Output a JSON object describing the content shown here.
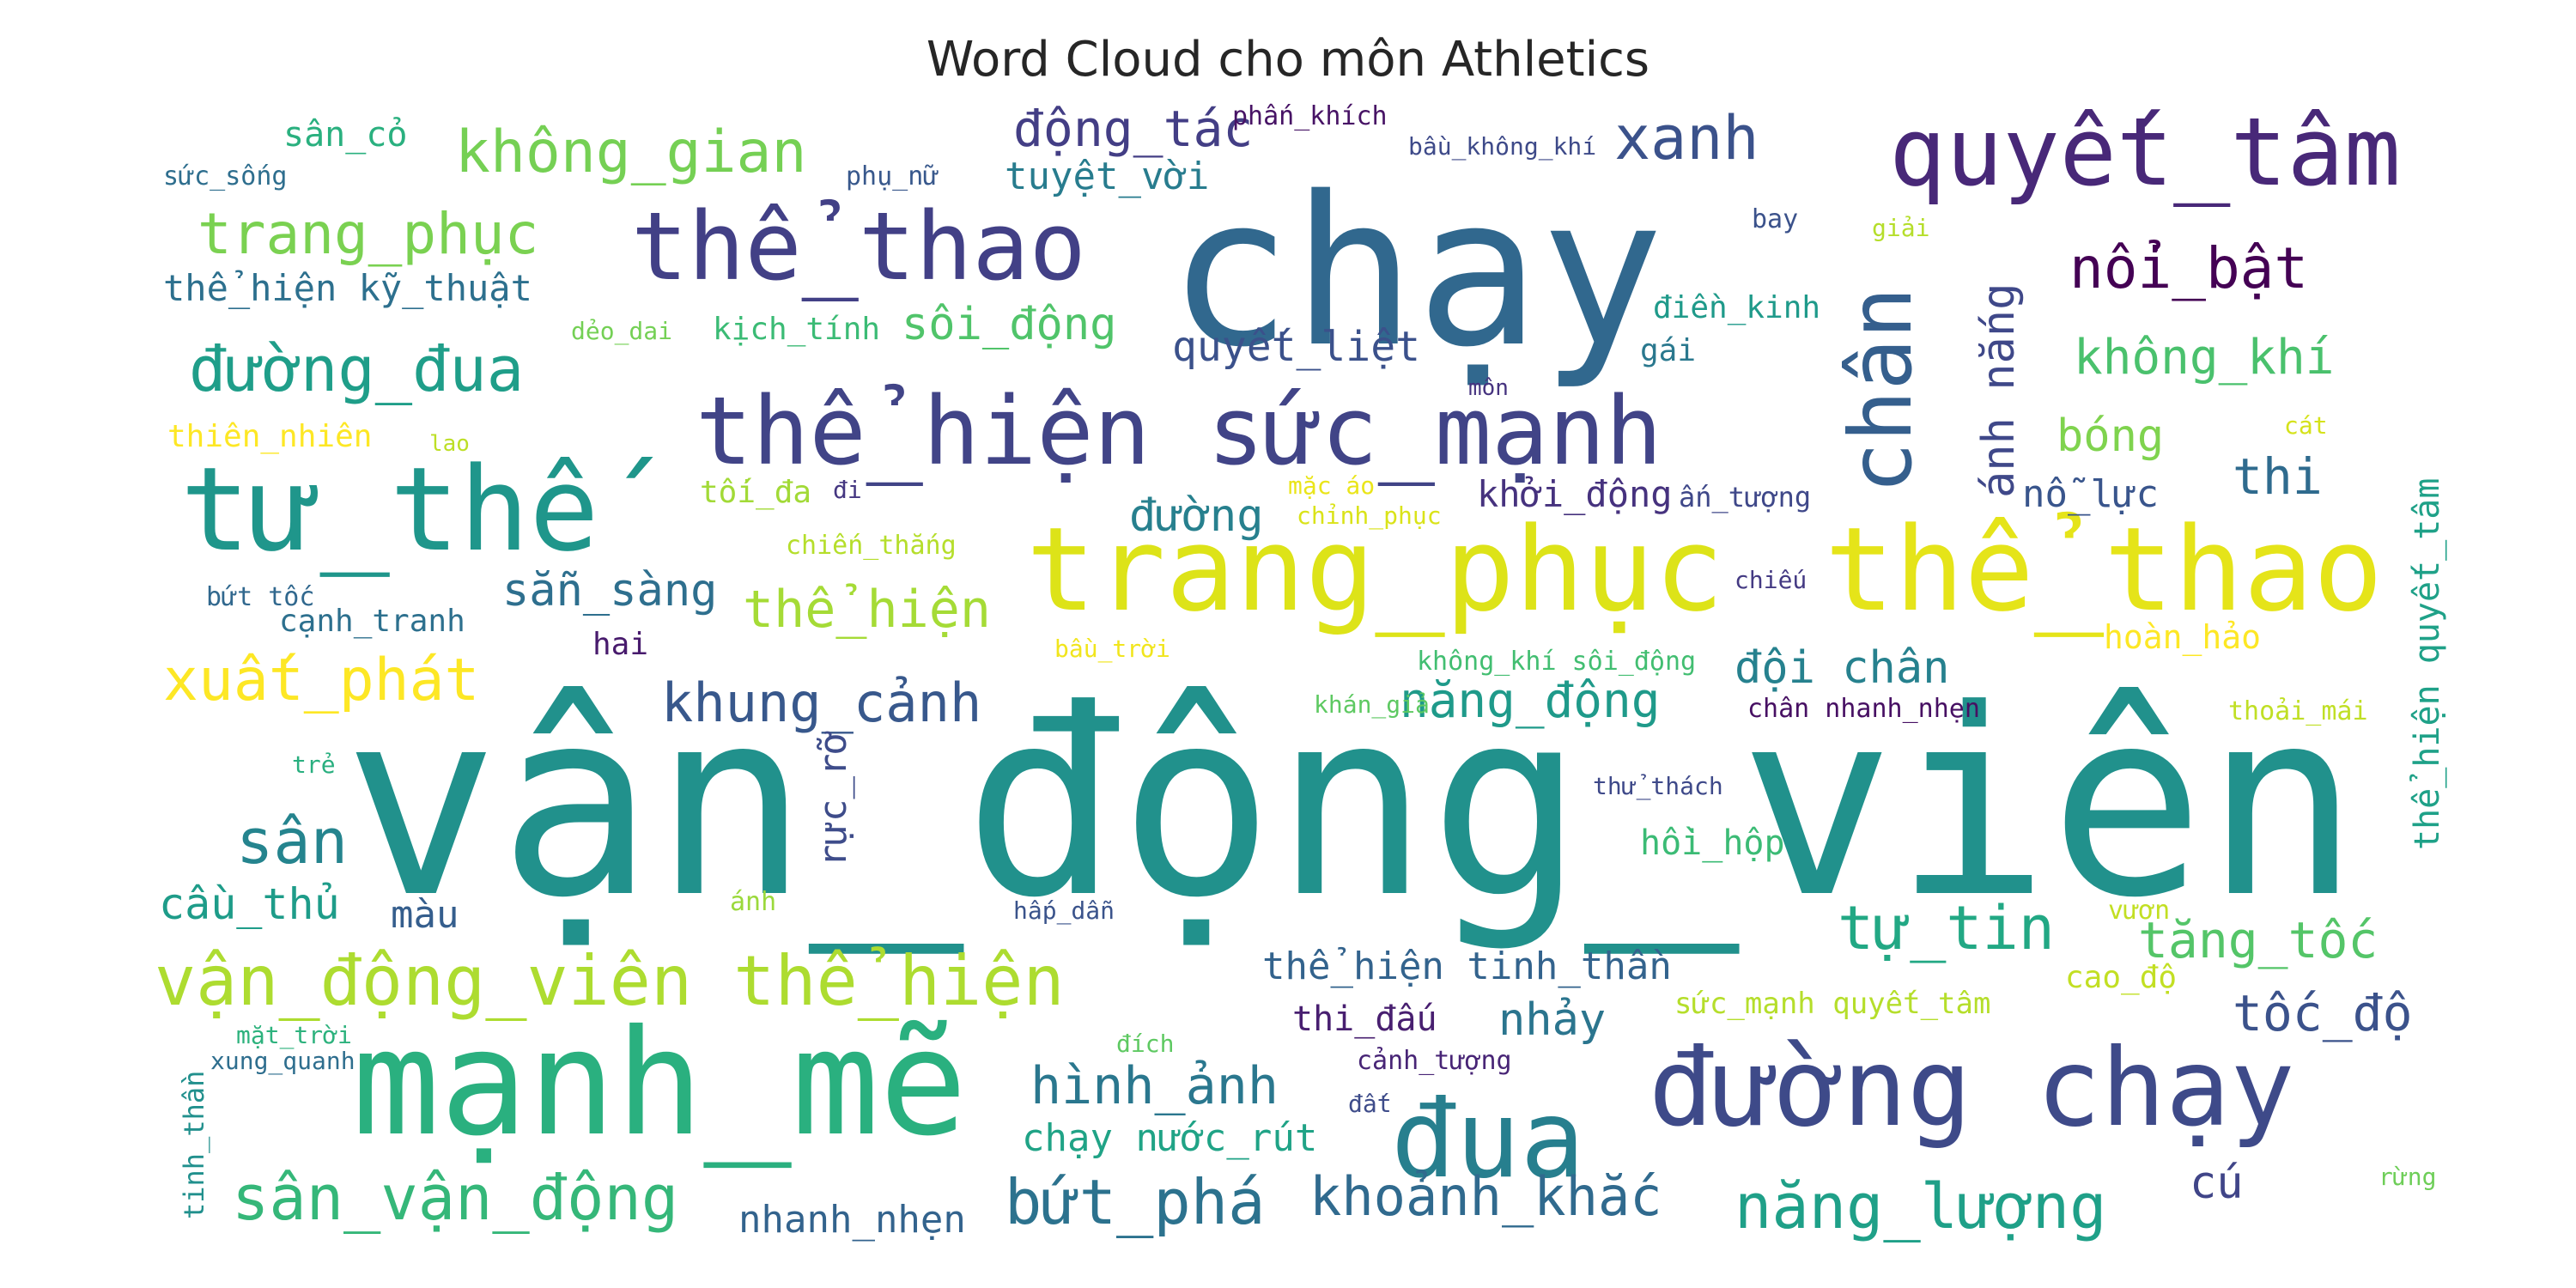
{
  "title": "Word Cloud cho môn Athletics",
  "words": [
    {
      "text": "vận_động_viên",
      "color": "#21918c"
    },
    {
      "text": "chạy",
      "color": "#31688e"
    },
    {
      "text": "mạnh_mẽ",
      "color": "#2ab07f"
    },
    {
      "text": "trang_phục",
      "color": "#dde318"
    },
    {
      "text": "thể_thao",
      "color": "#e5e419"
    },
    {
      "text": "tư_thế",
      "color": "#1f968b"
    },
    {
      "text": "thể_hiện sức_mạnh",
      "color": "#414487"
    },
    {
      "text": "đường chạy",
      "color": "#3e4a89"
    },
    {
      "text": "quyết_tâm",
      "color": "#482878"
    },
    {
      "text": "thể_thao",
      "color": "#424086"
    },
    {
      "text": "đua",
      "color": "#277f8e"
    },
    {
      "text": "chân",
      "color": "#355f8d"
    },
    {
      "text": "vận_động_viên thể_hiện",
      "color": "#addc30"
    },
    {
      "text": "không_gian",
      "color": "#75d054"
    },
    {
      "text": "trang_phục",
      "color": "#7ad151"
    },
    {
      "text": "đường_đua",
      "color": "#1f9e89"
    },
    {
      "text": "xanh",
      "color": "#3b528b"
    },
    {
      "text": "nổi_bật",
      "color": "#440154"
    },
    {
      "text": "xuất_phát",
      "color": "#fde725"
    },
    {
      "text": "sân_vận_động",
      "color": "#35b779"
    },
    {
      "text": "bứt_phá",
      "color": "#2c728e"
    },
    {
      "text": "năng_lượng",
      "color": "#1fa088"
    },
    {
      "text": "khoảnh_khắc",
      "color": "#306a8e"
    },
    {
      "text": "tự_tin",
      "color": "#22a884"
    },
    {
      "text": "tăng_tốc",
      "color": "#54c568"
    },
    {
      "text": "tốc_độ",
      "color": "#3b528b"
    },
    {
      "text": "hình_ảnh",
      "color": "#2a778e"
    },
    {
      "text": "khung_cảnh",
      "color": "#38588c"
    },
    {
      "text": "động_tác",
      "color": "#433e85"
    },
    {
      "text": "thể_hiện",
      "color": "#a5db36"
    },
    {
      "text": "không_khí",
      "color": "#4ac16d"
    },
    {
      "text": "sân",
      "color": "#25848e"
    },
    {
      "text": "năng_động",
      "color": "#1f9a8a"
    },
    {
      "text": "đội chân",
      "color": "#26818e"
    },
    {
      "text": "cầu_thủ",
      "color": "#1e9c89"
    },
    {
      "text": "sẵn_sàng",
      "color": "#2e6f8e"
    },
    {
      "text": "ánh nắng",
      "color": "#3f4889"
    },
    {
      "text": "thi",
      "color": "#2f6b8e"
    },
    {
      "text": "bóng",
      "color": "#7fd34e"
    },
    {
      "text": "quyết_liệt",
      "color": "#3b518b"
    },
    {
      "text": "sôi_động",
      "color": "#50c46a"
    },
    {
      "text": "đường",
      "color": "#27808e"
    },
    {
      "text": "nhảy",
      "color": "#2b758e"
    },
    {
      "text": "thể_hiện tinh_thần",
      "color": "#33638d"
    },
    {
      "text": "chạy nước_rút",
      "color": "#20a386"
    },
    {
      "text": "nhanh_nhẹn",
      "color": "#33638d"
    },
    {
      "text": "thể_hiện kỹ_thuật",
      "color": "#2d708e"
    },
    {
      "text": "tuyệt_vời",
      "color": "#287c8e"
    },
    {
      "text": "màu",
      "color": "#355e8d"
    },
    {
      "text": "rực_rỡ",
      "color": "#3e4c8a"
    },
    {
      "text": "khởi_động",
      "color": "#46327e"
    },
    {
      "text": "nỗ_lực",
      "color": "#39558c"
    },
    {
      "text": "thể_hiện quyết_tâm",
      "color": "#1fa188"
    },
    {
      "text": "hồi_hộp",
      "color": "#3bbb75"
    },
    {
      "text": "thi_đấu",
      "color": "#481f70"
    },
    {
      "text": "cú",
      "color": "#404588"
    },
    {
      "text": "sân_cỏ",
      "color": "#2ab07f"
    },
    {
      "text": "sức_sống",
      "color": "#2e6e8e"
    },
    {
      "text": "phụ_nữ",
      "color": "#38588c"
    },
    {
      "text": "phấn_khích",
      "color": "#471365"
    },
    {
      "text": "bầu_không_khí",
      "color": "#3e4a89"
    },
    {
      "text": "bay",
      "color": "#3b528b"
    },
    {
      "text": "giải",
      "color": "#b5de2b"
    },
    {
      "text": "điền_kinh",
      "color": "#1f9a8a"
    },
    {
      "text": "gái",
      "color": "#2a788e"
    },
    {
      "text": "môn",
      "color": "#46337f"
    },
    {
      "text": "kịch_tính",
      "color": "#3bbb75"
    },
    {
      "text": "dẻo_dai",
      "color": "#74d055"
    },
    {
      "text": "thiên_nhiên",
      "color": "#fde725"
    },
    {
      "text": "lao",
      "color": "#bddf26"
    },
    {
      "text": "tối_đa",
      "color": "#a2da37"
    },
    {
      "text": "đi",
      "color": "#453781"
    },
    {
      "text": "chiến_thắng",
      "color": "#b5de2b"
    },
    {
      "text": "mặc áo",
      "color": "#eae51a"
    },
    {
      "text": "chỉnh_phục",
      "color": "#dae319"
    },
    {
      "text": "ấn_tượng",
      "color": "#3f4889"
    },
    {
      "text": "cát",
      "color": "#d5e21a"
    },
    {
      "text": "bứt tốc",
      "color": "#31688e"
    },
    {
      "text": "cạnh_tranh",
      "color": "#2d708e"
    },
    {
      "text": "hai",
      "color": "#481b6d"
    },
    {
      "text": "chiếu",
      "color": "#443a83"
    },
    {
      "text": "bầu_trời",
      "color": "#f1e51d"
    },
    {
      "text": "hoàn_hảo",
      "color": "#fde725"
    },
    {
      "text": "không_khí sôi_động",
      "color": "#42be71"
    },
    {
      "text": "khán_giả",
      "color": "#5ec962"
    },
    {
      "text": "chân nhanh_nhẹn",
      "color": "#471063"
    },
    {
      "text": "thoải_mái",
      "color": "#c0df25"
    },
    {
      "text": "trẻ",
      "color": "#29af7f"
    },
    {
      "text": "thử_thách",
      "color": "#3e4989"
    },
    {
      "text": "ánh",
      "color": "#9bd93c"
    },
    {
      "text": "hấp_dẫn",
      "color": "#3a538b"
    },
    {
      "text": "vươn",
      "color": "#c2df23"
    },
    {
      "text": "cao_độ",
      "color": "#c2df23"
    },
    {
      "text": "sức_mạnh quyết_tâm",
      "color": "#b5de2b"
    },
    {
      "text": "mặt_trời",
      "color": "#2db27d"
    },
    {
      "text": "xung_quanh",
      "color": "#2e6e8e"
    },
    {
      "text": "tinh_thần",
      "color": "#21908d"
    },
    {
      "text": "đích",
      "color": "#5ec962"
    },
    {
      "text": "cảnh_tượng",
      "color": "#482576"
    },
    {
      "text": "đất",
      "color": "#3e4c8a"
    },
    {
      "text": "rừng",
      "color": "#6ece58"
    }
  ]
}
